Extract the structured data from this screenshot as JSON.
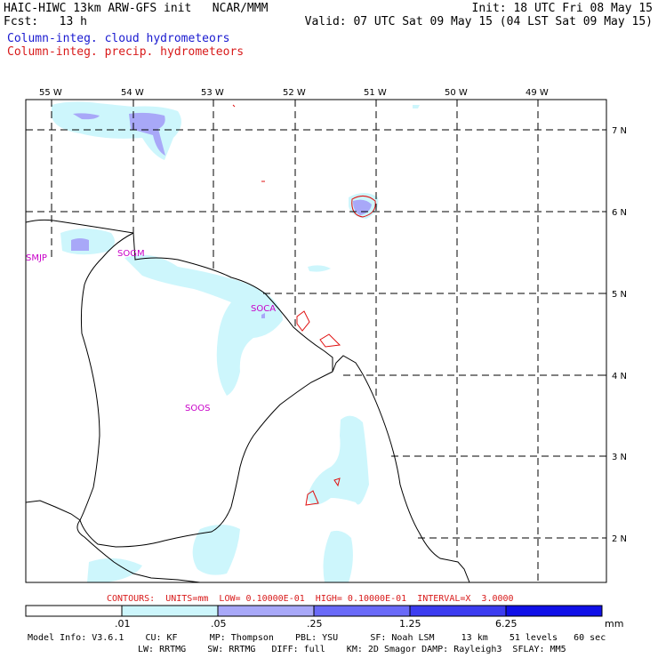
{
  "header": {
    "title_left": "HAIC-HIWC 13km ARW-GFS init   NCAR/MMM",
    "init": "Init: 18 UTC Fri 08 May 15",
    "fcst": "Fcst:   13 h",
    "valid": "Valid: 07 UTC Sat 09 May 15 (04 LST Sat 09 May 15)",
    "field_cloud": "Column-integ. cloud hydrometeors",
    "field_precip": "Column-integ. precip. hydrometeors"
  },
  "map": {
    "lon_labels": [
      "55 W",
      "54 W",
      "53 W",
      "52 W",
      "51 W",
      "50 W",
      "49 W"
    ],
    "lat_labels": [
      "7 N",
      "6 N",
      "5 N",
      "4 N",
      "3 N",
      "2 N"
    ],
    "stations": [
      "SMJP",
      "SOGM",
      "SOCA",
      "SOOS"
    ]
  },
  "contours": "CONTOURS:  UNITS=mm  LOW= 0.10000E-01  HIGH= 0.10000E-01  INTERVAL=X  3.0000",
  "colorbar": {
    "ticks": [
      ".01",
      ".05",
      ".25",
      "1.25",
      "6.25"
    ],
    "unit": "mm",
    "colors": [
      "#ffffff",
      "#cdf6fc",
      "#a8a8f8",
      "#6a6af8",
      "#3c3cf0",
      "#1010e8"
    ]
  },
  "model_info": {
    "line1": "Model Info: V3.6.1    CU: KF      MP: Thompson    PBL: YSU      SF: Noah LSM     13 km    51 levels   60 sec",
    "line2": "LW: RRTMG    SW: RRTMG   DIFF: full    KM: 2D Smagor DAMP: Rayleigh3  SFLAY: MM5"
  }
}
